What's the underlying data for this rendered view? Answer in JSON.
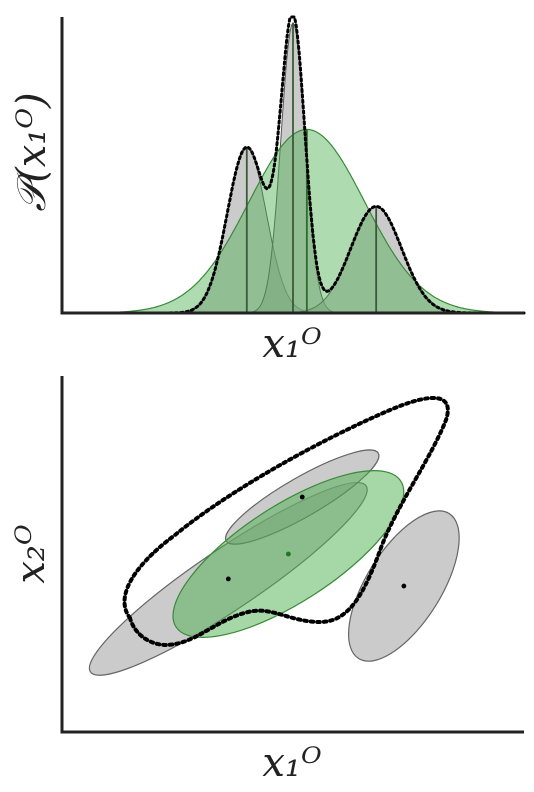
{
  "chart_data": [
    {
      "type": "area",
      "description_role": "top panel: 1D Gaussian mixture vs single Gaussian fit",
      "ylabel": "𝒫(x₁ᴼ)",
      "xlabel": "x₁ᴼ",
      "grid": false,
      "xlim": [
        0,
        10
      ],
      "ylim": [
        0,
        1
      ],
      "gray_components": [
        {
          "mean": 4.0,
          "sd": 0.42,
          "peak": 0.56
        },
        {
          "mean": 5.0,
          "sd": 0.26,
          "peak": 0.98
        },
        {
          "mean": 6.8,
          "sd": 0.55,
          "peak": 0.36
        }
      ],
      "green_gaussian": {
        "mean": 5.3,
        "sd": 1.25,
        "peak": 0.62
      },
      "mixture_style": "dotted-black",
      "colors": {
        "gray": "#a0a0a0",
        "green": "#4caf50",
        "mixture": "#000000"
      }
    },
    {
      "type": "scatter",
      "description_role": "bottom panel: 2D Gaussian mixture covariance ellipses vs single Gaussian fit",
      "xlabel": "x₁ᴼ",
      "ylabel": "x₂ᴼ",
      "grid": false,
      "xlim": [
        0,
        10
      ],
      "ylim": [
        0,
        10
      ],
      "gray_components": [
        {
          "center": [
            3.6,
            4.3
          ],
          "rx": 3.6,
          "ry": 0.85,
          "angle": 34
        },
        {
          "center": [
            5.2,
            6.6
          ],
          "rx": 1.9,
          "ry": 0.55,
          "angle": 30
        },
        {
          "center": [
            7.4,
            4.1
          ],
          "rx": 1.85,
          "ry": 1.05,
          "angle": 58
        }
      ],
      "green_gaussian": {
        "center": [
          4.9,
          5.0
        ],
        "rx": 2.9,
        "ry": 1.35,
        "angle": 33
      },
      "dot_colors": {
        "gray": "#000000",
        "green": "#1b7a1b"
      },
      "colors": {
        "gray": "#a0a0a0",
        "green": "#4caf50",
        "mixture": "#000000"
      }
    }
  ]
}
